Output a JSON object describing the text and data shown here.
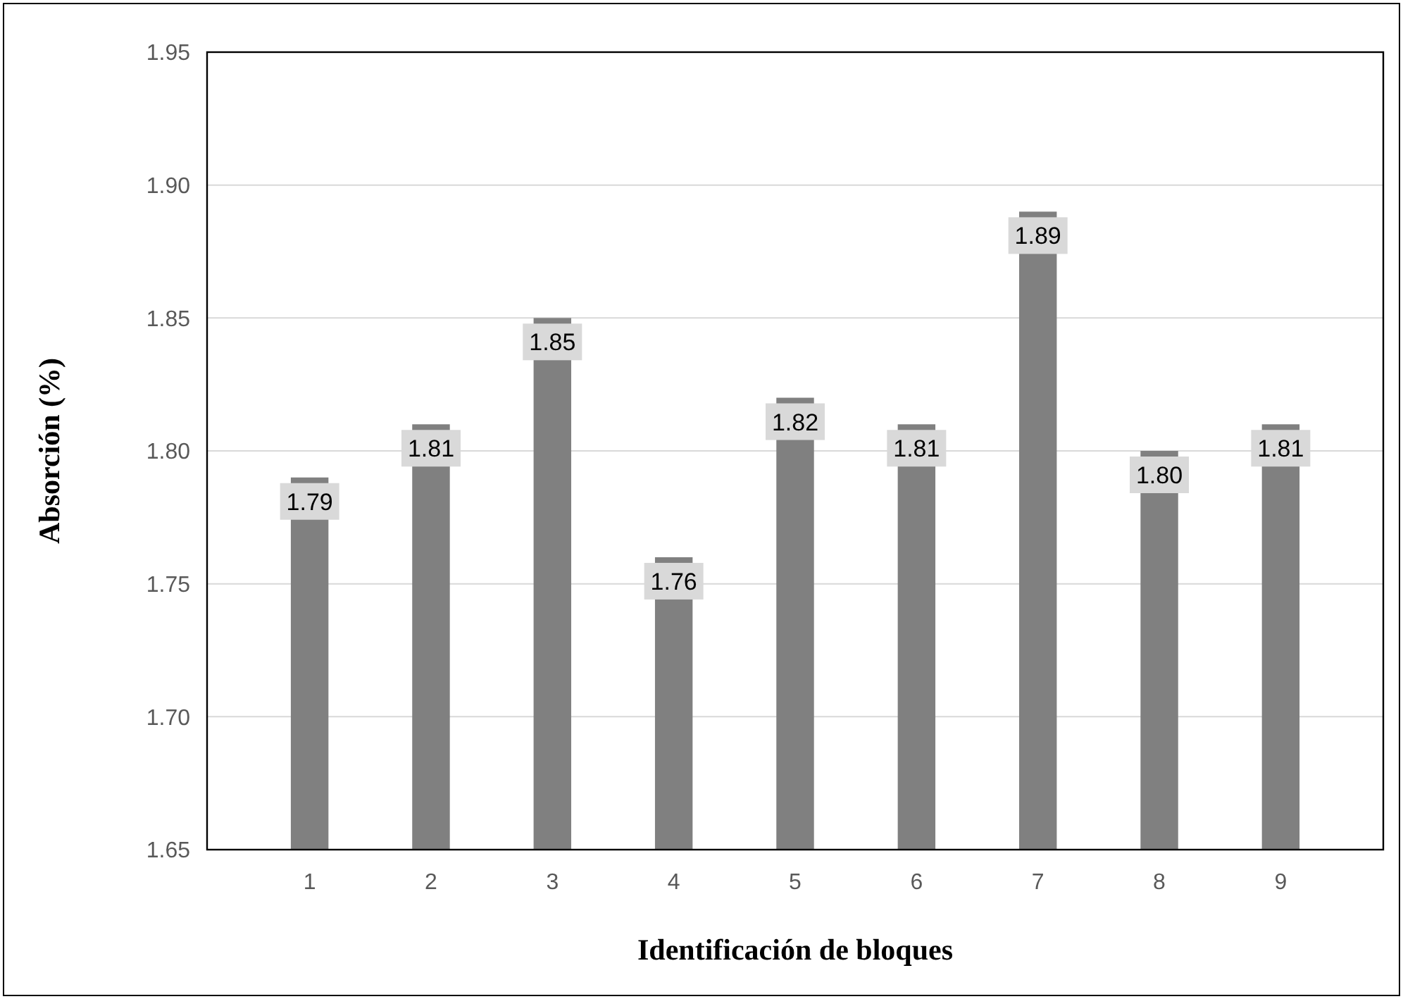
{
  "chart_data": {
    "type": "bar",
    "xlabel": "Identificación de bloques",
    "ylabel": "Absorción (%)",
    "categories": [
      "1",
      "2",
      "3",
      "4",
      "5",
      "6",
      "7",
      "8",
      "9"
    ],
    "values": [
      1.79,
      1.81,
      1.85,
      1.76,
      1.82,
      1.81,
      1.89,
      1.8,
      1.81
    ],
    "color": "#808080",
    "ylim": [
      1.65,
      1.95
    ],
    "yticks": [
      {
        "value": 1.65,
        "label": "1.65"
      },
      {
        "value": 1.7,
        "label": "1.70"
      },
      {
        "value": 1.75,
        "label": "1.75"
      },
      {
        "value": 1.8,
        "label": "1.80"
      },
      {
        "value": 1.85,
        "label": "1.85"
      },
      {
        "value": 1.9,
        "label": "1.90"
      },
      {
        "value": 1.95,
        "label": "1.95"
      }
    ],
    "grid": "y",
    "value_labels": [
      "1.79",
      "1.81",
      "1.85",
      "1.76",
      "1.82",
      "1.81",
      "1.89",
      "1.80",
      "1.81"
    ]
  }
}
